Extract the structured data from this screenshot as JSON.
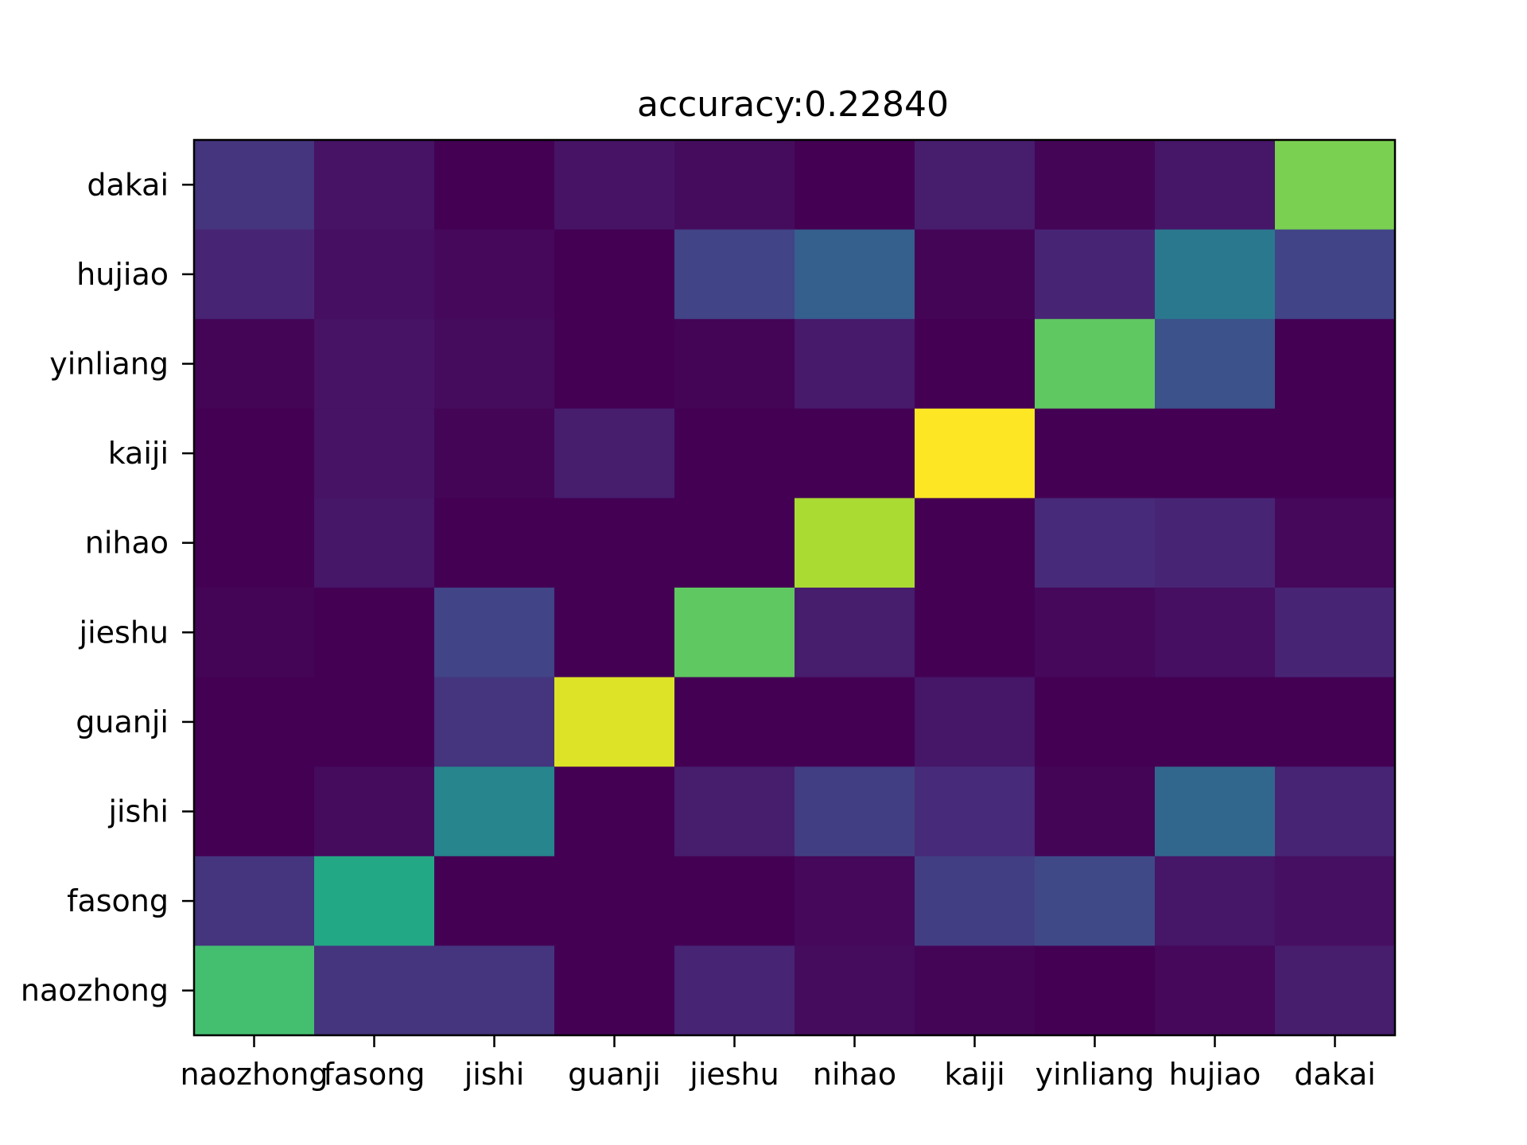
{
  "chart_data": {
    "type": "heatmap",
    "title": "accuracy:0.22840",
    "xlabel": "",
    "ylabel": "",
    "x_categories": [
      "naozhong",
      "fasong",
      "jishi",
      "guanji",
      "jieshu",
      "nihao",
      "kaiji",
      "yinliang",
      "hujiao",
      "dakai"
    ],
    "y_categories": [
      "dakai",
      "hujiao",
      "yinliang",
      "kaiji",
      "nihao",
      "jieshu",
      "guanji",
      "jishi",
      "fasong",
      "naozhong"
    ],
    "values": [
      [
        0.15,
        0.05,
        0.0,
        0.05,
        0.03,
        0.0,
        0.08,
        0.01,
        0.06,
        0.8
      ],
      [
        0.1,
        0.04,
        0.02,
        0.0,
        0.2,
        0.3,
        0.01,
        0.1,
        0.4,
        0.2
      ],
      [
        0.01,
        0.05,
        0.03,
        0.0,
        0.01,
        0.07,
        0.0,
        0.75,
        0.25,
        0.0
      ],
      [
        0.0,
        0.05,
        0.01,
        0.08,
        0.0,
        0.0,
        1.0,
        0.0,
        0.0,
        0.0
      ],
      [
        0.0,
        0.06,
        0.0,
        0.0,
        0.0,
        0.87,
        0.0,
        0.12,
        0.1,
        0.02
      ],
      [
        0.01,
        0.0,
        0.2,
        0.0,
        0.75,
        0.08,
        0.0,
        0.02,
        0.04,
        0.1
      ],
      [
        0.0,
        0.0,
        0.15,
        0.95,
        0.0,
        0.0,
        0.06,
        0.0,
        0.0,
        0.0
      ],
      [
        0.0,
        0.03,
        0.45,
        0.0,
        0.08,
        0.18,
        0.12,
        0.01,
        0.33,
        0.1
      ],
      [
        0.15,
        0.6,
        0.0,
        0.0,
        0.0,
        0.02,
        0.18,
        0.22,
        0.06,
        0.04
      ],
      [
        0.7,
        0.15,
        0.15,
        0.0,
        0.1,
        0.03,
        0.01,
        0.0,
        0.02,
        0.08
      ]
    ],
    "vmin": 0,
    "vmax": 1,
    "colormap": "viridis",
    "grid": false,
    "legend": "none"
  }
}
